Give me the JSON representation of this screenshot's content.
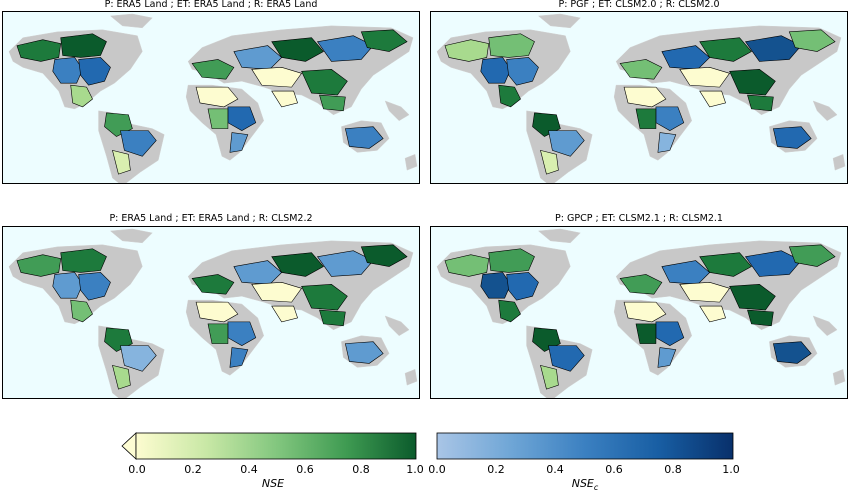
{
  "panels": [
    {
      "title": "P: ERA5 Land ; ET: ERA5 Land ; R: ERA5 Land"
    },
    {
      "title": "P: PGF ; ET: CLSM2.0 ; R: CLSM2.0"
    },
    {
      "title": "P: ERA5 Land ; ET: ERA5 Land ; R: CLSM2.2"
    },
    {
      "title": "P: GPCP ; ET: CLSM2.1 ; R: CLSM2.1"
    }
  ],
  "colorbars": [
    {
      "label": "NSE",
      "ticks": [
        "0.0",
        "0.2",
        "0.4",
        "0.6",
        "0.8",
        "1.0"
      ],
      "range": [
        0,
        1
      ],
      "extend": "min",
      "colors": [
        "#fdfcd0",
        "#c9e8a6",
        "#83c77f",
        "#3f9b52",
        "#0b5b2c"
      ]
    },
    {
      "label": "NSE",
      "label_sub": "c",
      "ticks": [
        "0.0",
        "0.2",
        "0.4",
        "0.6",
        "0.8",
        "1.0"
      ],
      "range": [
        0,
        1
      ],
      "extend": "none",
      "colors": [
        "#a9c5e6",
        "#6fa6d6",
        "#3b80c1",
        "#185ea3",
        "#08306b"
      ]
    }
  ],
  "colors": {
    "ocean": "#edfdff",
    "land_nodata": "#c8c8c8",
    "border": "#000000"
  }
}
